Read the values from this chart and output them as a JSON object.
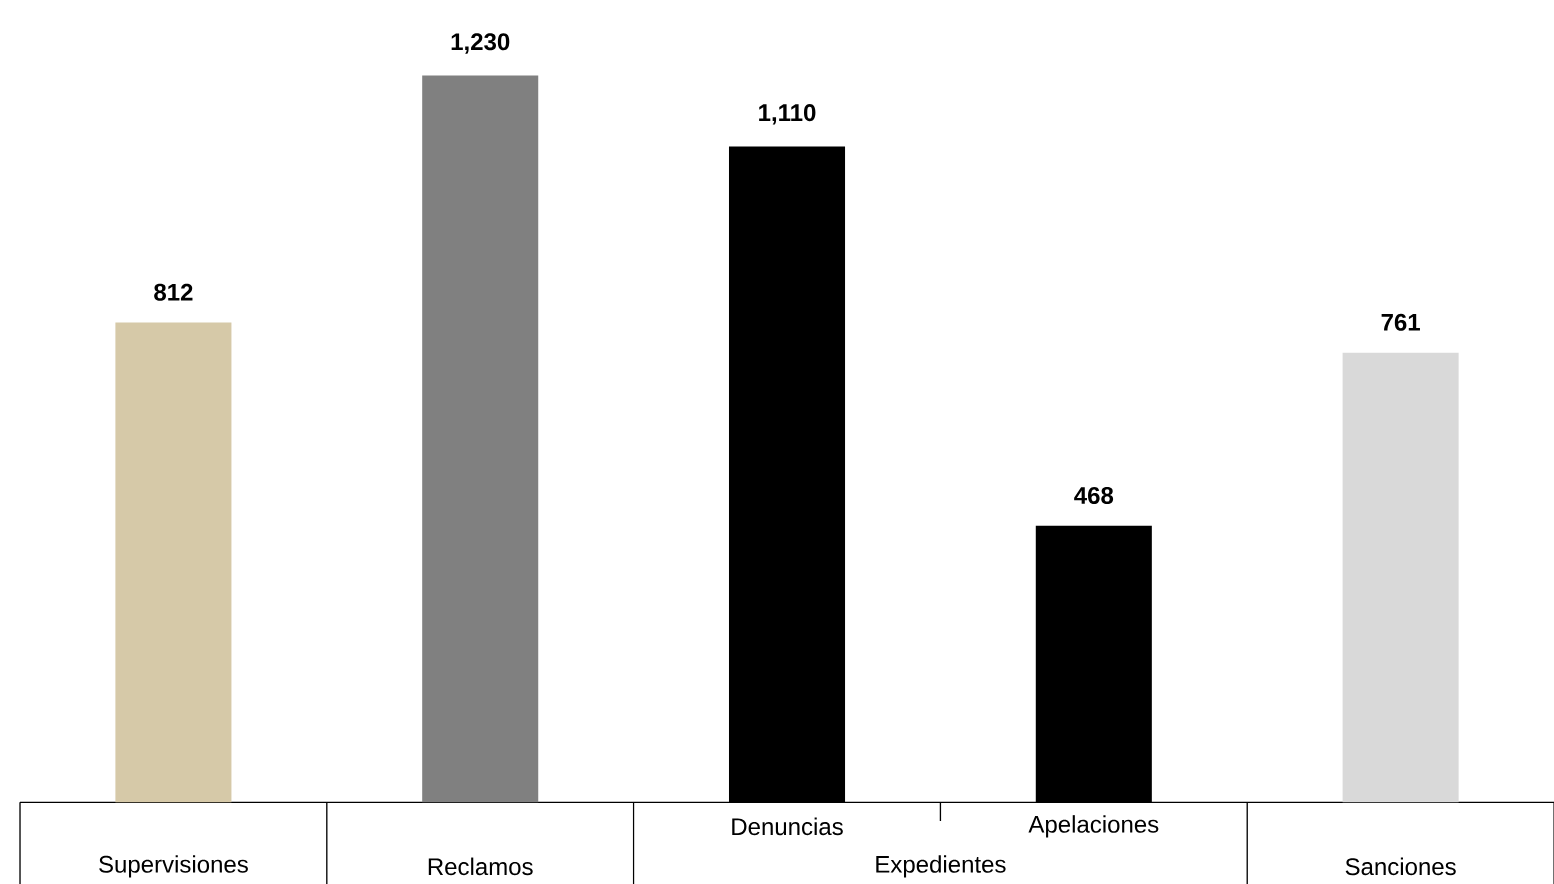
{
  "chart_data": {
    "type": "bar",
    "categories": [
      "Supervisiones",
      "Reclamos",
      "Denuncias",
      "Apelaciones",
      "Sanciones"
    ],
    "values": [
      812,
      1230,
      1110,
      468,
      761
    ],
    "colors": [
      "#d6c9a8",
      "#808080",
      "#000000",
      "#000000",
      "#d9d9d9"
    ],
    "value_labels": [
      "812",
      "1,230",
      "1,110",
      "468",
      "761"
    ],
    "annotations": [
      "Expedientes"
    ]
  }
}
